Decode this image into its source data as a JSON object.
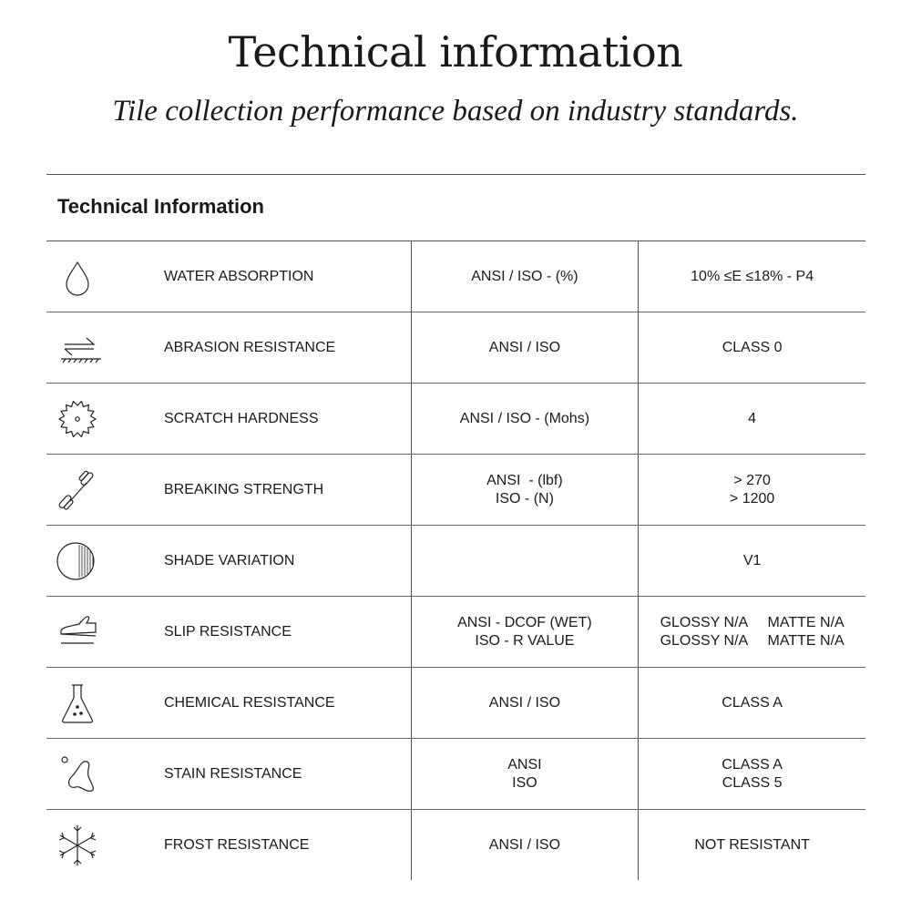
{
  "header": {
    "title": "Technical information",
    "subtitle": "Tile collection performance based on industry standards."
  },
  "table": {
    "heading": "Technical Information",
    "rows": [
      {
        "icon": "water-drop-icon",
        "label": "WATER ABSORPTION",
        "standard": [
          "ANSI / ISO - (%)"
        ],
        "value": [
          "10% ≤E ≤18% - P4"
        ]
      },
      {
        "icon": "abrasion-icon",
        "label": "ABRASION RESISTANCE",
        "standard": [
          "ANSI / ISO"
        ],
        "value": [
          "CLASS 0"
        ]
      },
      {
        "icon": "gear-icon",
        "label": "SCRATCH HARDNESS",
        "standard": [
          "ANSI / ISO - (Mohs)"
        ],
        "value": [
          "4"
        ]
      },
      {
        "icon": "dumbbell-icon",
        "label": "BREAKING STRENGTH",
        "standard": [
          "ANSI  - (lbf)",
          "ISO - (N)"
        ],
        "value": [
          "> 270",
          "> 1200"
        ]
      },
      {
        "icon": "shade-circle-icon",
        "label": "SHADE VARIATION",
        "standard": [
          ""
        ],
        "value": [
          "V1"
        ]
      },
      {
        "icon": "shoe-icon",
        "label": "SLIP RESISTANCE",
        "standard": [
          "ANSI - DCOF (WET)",
          "ISO - R VALUE"
        ],
        "value": [
          "GLOSSY N/A     MATTE N/A",
          "GLOSSY N/A     MATTE N/A"
        ]
      },
      {
        "icon": "flask-icon",
        "label": "CHEMICAL RESISTANCE",
        "standard": [
          "ANSI / ISO"
        ],
        "value": [
          "CLASS A"
        ]
      },
      {
        "icon": "stain-icon",
        "label": "STAIN RESISTANCE",
        "standard": [
          "ANSI",
          "ISO"
        ],
        "value": [
          "CLASS A",
          "CLASS 5"
        ]
      },
      {
        "icon": "snowflake-icon",
        "label": "FROST RESISTANCE",
        "standard": [
          "ANSI / ISO"
        ],
        "value": [
          "NOT RESISTANT"
        ]
      }
    ]
  }
}
